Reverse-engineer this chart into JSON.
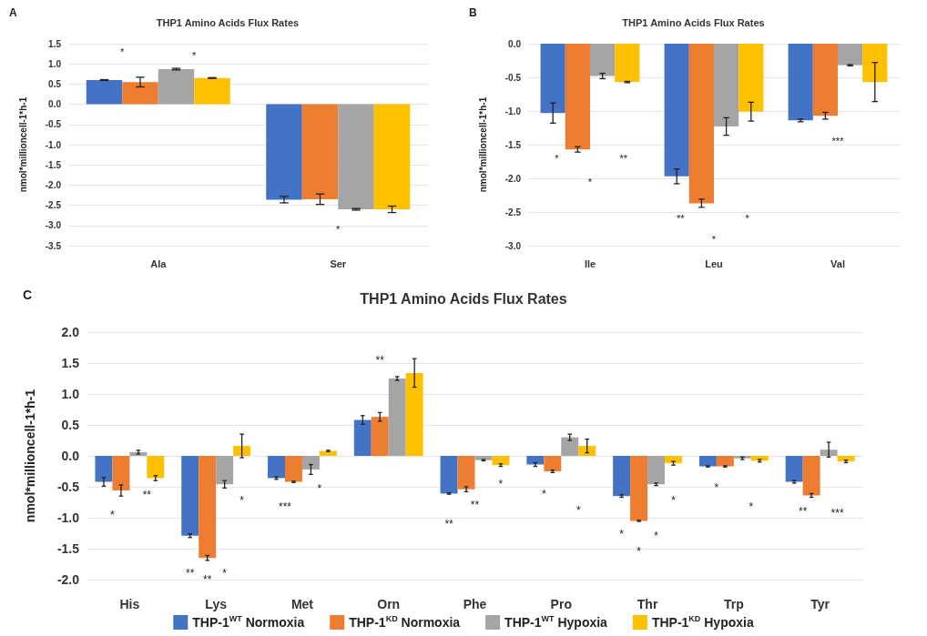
{
  "chart_data": [
    {
      "type": "bar",
      "title": "THP1 Amino Acids Flux Rates",
      "ylabel": "nmol*millioncell-1*h-1",
      "categories": [
        "Ala",
        "Ser"
      ],
      "series": [
        {
          "color": "#4472c4",
          "values": [
            0.6,
            -2.36
          ],
          "errors": [
            0.01,
            0.08
          ]
        },
        {
          "color": "#ed7d31",
          "values": [
            0.55,
            -2.35
          ],
          "errors": [
            0.12,
            0.13
          ]
        },
        {
          "color": "#a5a5a5",
          "values": [
            0.87,
            -2.6
          ],
          "errors": [
            0.02,
            0.02
          ]
        },
        {
          "color": "#ffc000",
          "values": [
            0.65,
            -2.6
          ],
          "errors": [
            0.01,
            0.08
          ]
        }
      ],
      "ylim": [
        -3.5,
        1.5
      ],
      "yticks": [
        {
          "value": -3.5,
          "label": "-3.5"
        },
        {
          "value": -3,
          "label": "-3.0"
        },
        {
          "value": -2.5,
          "label": "-2.5"
        },
        {
          "value": -2,
          "label": "-2.0"
        },
        {
          "value": -1.5,
          "label": "-1.5"
        },
        {
          "value": -1,
          "label": "-1.0"
        },
        {
          "value": -0.5,
          "label": "-0.5"
        },
        {
          "value": 0,
          "label": "0.0"
        },
        {
          "value": 0.5,
          "label": "0.5"
        },
        {
          "value": 1,
          "label": "1.0"
        },
        {
          "value": 1.5,
          "label": "1.5"
        }
      ],
      "grid": "y",
      "legend": false,
      "annotations": [
        "A",
        "*",
        "*",
        "*"
      ]
    },
    {
      "type": "bar",
      "title": "THP1 Amino Acids Flux Rates",
      "ylabel": "nmol*millioncell-1*h-1",
      "categories": [
        "Ile",
        "Leu",
        "Val"
      ],
      "series": [
        {
          "color": "#4472c4",
          "values": [
            -1.03,
            -1.97,
            -1.14
          ],
          "errors": [
            0.15,
            0.11,
            0.02
          ]
        },
        {
          "color": "#ed7d31",
          "values": [
            -1.57,
            -2.37,
            -1.07
          ],
          "errors": [
            0.04,
            0.06,
            0.05
          ]
        },
        {
          "color": "#a5a5a5",
          "values": [
            -0.48,
            -1.23,
            -0.32
          ],
          "errors": [
            0.04,
            0.13,
            0.01
          ]
        },
        {
          "color": "#ffc000",
          "values": [
            -0.57,
            -1.01,
            -0.57
          ],
          "errors": [
            0.01,
            0.14,
            0.29
          ]
        }
      ],
      "ylim": [
        -3,
        0
      ],
      "yticks": [
        {
          "value": -3,
          "label": "-3.0"
        },
        {
          "value": -2.5,
          "label": "-2.5"
        },
        {
          "value": -2,
          "label": "-2.0"
        },
        {
          "value": -1.5,
          "label": "-1.5"
        },
        {
          "value": -1,
          "label": "-1.0"
        },
        {
          "value": -0.5,
          "label": "-0.5"
        },
        {
          "value": 0,
          "label": "0.0"
        }
      ],
      "grid": "y",
      "legend": false,
      "annotations": [
        "B",
        "*",
        "*",
        "**",
        "**",
        "*",
        "*",
        "***"
      ]
    },
    {
      "type": "bar",
      "title": "THP1 Amino Acids Flux Rates",
      "ylabel": "nmol*millioncell-1*h-1",
      "categories": [
        "His",
        "Lys",
        "Met",
        "Orn",
        "Phe",
        "Pro",
        "Thr",
        "Trp",
        "Tyr"
      ],
      "series": [
        {
          "name": "THP-1$^{WT}$ Normoxia",
          "color": "#4472c4",
          "values": [
            -0.42,
            -1.29,
            -0.36,
            0.58,
            -0.61,
            -0.14,
            -0.65,
            -0.17,
            -0.42
          ],
          "errors": [
            0.07,
            0.03,
            0.02,
            0.07,
            0.01,
            0.03,
            0.02,
            0.01,
            0.02
          ]
        },
        {
          "name": "THP-1$^{KD}$ Normoxia",
          "color": "#ed7d31",
          "values": [
            -0.56,
            -1.65,
            -0.42,
            0.63,
            -0.54,
            -0.25,
            -1.05,
            -0.17,
            -0.64
          ],
          "errors": [
            0.09,
            0.04,
            0.01,
            0.07,
            0.04,
            0.02,
            0.01,
            0.01,
            0.03
          ]
        },
        {
          "name": "THP-1$^{WT}$ Hypoxia",
          "color": "#a5a5a5",
          "values": [
            0.06,
            -0.46,
            -0.22,
            1.25,
            -0.07,
            0.3,
            -0.46,
            -0.04,
            0.1
          ],
          "errors": [
            0.03,
            0.06,
            0.08,
            0.03,
            0.01,
            0.05,
            0.02,
            0.02,
            0.12
          ]
        },
        {
          "name": "THP-1$^{KD}$ Hypoxia",
          "color": "#ffc000",
          "values": [
            -0.36,
            0.16,
            0.08,
            1.34,
            -0.15,
            0.16,
            -0.12,
            -0.08,
            -0.09
          ],
          "errors": [
            0.04,
            0.19,
            0.01,
            0.23,
            0.02,
            0.11,
            0.03,
            0.02,
            0.02
          ]
        }
      ],
      "ylim": [
        -2,
        2
      ],
      "yticks": [
        {
          "value": -2,
          "label": "-2.0"
        },
        {
          "value": -1.5,
          "label": "-1.5"
        },
        {
          "value": -1,
          "label": "-1.0"
        },
        {
          "value": -0.5,
          "label": "-0.5"
        },
        {
          "value": 0,
          "label": "0.0"
        },
        {
          "value": 0.5,
          "label": "0.5"
        },
        {
          "value": 1,
          "label": "1.0"
        },
        {
          "value": 1.5,
          "label": "1.5"
        },
        {
          "value": 2,
          "label": "2.0"
        }
      ],
      "grid": "y",
      "legend": "bottom",
      "annotations": [
        "C",
        "*",
        "**",
        "**",
        "**",
        "*",
        "*",
        "***",
        "*",
        "**",
        "**",
        "**",
        "*",
        "*",
        "*",
        "*",
        "*",
        "*",
        "*",
        "*",
        "*",
        "**",
        "***"
      ]
    }
  ]
}
